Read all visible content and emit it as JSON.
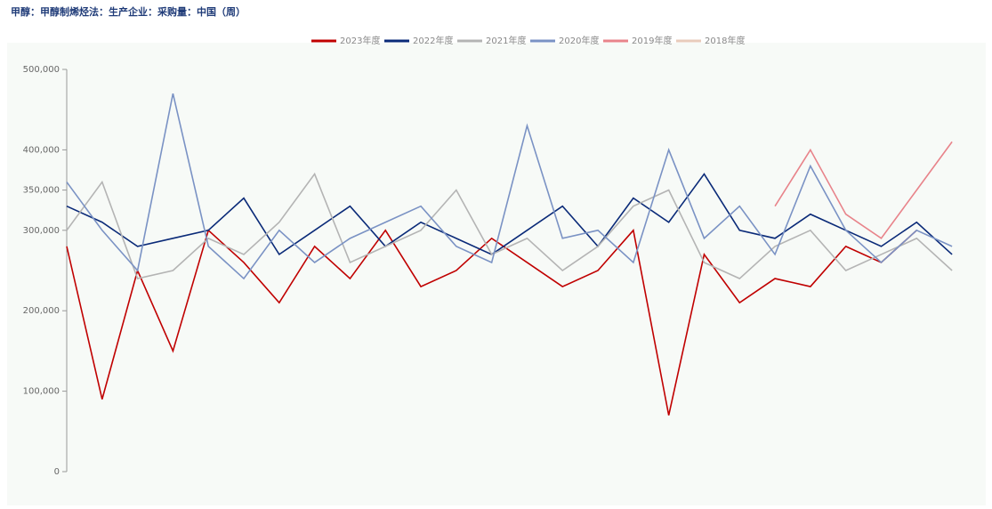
{
  "chart_data": {
    "type": "line",
    "title": "甲醇：甲醇制烯烃法：生产企业：采购量：中国（周）",
    "x": [
      1,
      3,
      5,
      7,
      9,
      11,
      13,
      15,
      17,
      19,
      21,
      23,
      25,
      27,
      29,
      31,
      33,
      35,
      37,
      39,
      41,
      43,
      45,
      47,
      49,
      51
    ],
    "xlim": [
      1,
      52
    ],
    "ylim": [
      0,
      500000
    ],
    "yticks": [
      {
        "value": 0,
        "label": "0"
      },
      {
        "value": 100000,
        "label": "100,000"
      },
      {
        "value": 200000,
        "label": "200,000"
      },
      {
        "value": 300000,
        "label": "300,000"
      },
      {
        "value": 350000,
        "label": "350,000"
      },
      {
        "value": 400000,
        "label": "400,000"
      },
      {
        "value": 500000,
        "label": "500,000"
      }
    ],
    "legend": "top",
    "series": [
      {
        "name": "2023年度",
        "color": "#c00000",
        "values": [
          280000,
          90000,
          250000,
          150000,
          300000,
          260000,
          210000,
          280000,
          240000,
          300000,
          230000,
          250000,
          290000,
          260000,
          230000,
          250000,
          300000,
          70000,
          270000,
          210000,
          240000,
          230000,
          280000,
          260000,
          300000,
          null
        ]
      },
      {
        "name": "2022年度",
        "color": "#0a2a78",
        "values": [
          330000,
          310000,
          280000,
          290000,
          300000,
          340000,
          270000,
          300000,
          330000,
          280000,
          310000,
          290000,
          270000,
          300000,
          330000,
          280000,
          340000,
          310000,
          370000,
          300000,
          290000,
          320000,
          300000,
          280000,
          310000,
          270000
        ]
      },
      {
        "name": "2021年度",
        "color": "#b4b4b4",
        "values": [
          300000,
          360000,
          240000,
          250000,
          290000,
          270000,
          310000,
          370000,
          260000,
          280000,
          300000,
          350000,
          270000,
          290000,
          250000,
          280000,
          330000,
          350000,
          260000,
          240000,
          280000,
          300000,
          250000,
          270000,
          290000,
          250000
        ]
      },
      {
        "name": "2020年度",
        "color": "#7a92c4",
        "values": [
          360000,
          300000,
          250000,
          470000,
          280000,
          240000,
          300000,
          260000,
          290000,
          310000,
          330000,
          280000,
          260000,
          430000,
          290000,
          300000,
          260000,
          400000,
          290000,
          330000,
          270000,
          380000,
          300000,
          260000,
          300000,
          280000
        ]
      },
      {
        "name": "2019年度",
        "color": "#e8838a",
        "values": [
          null,
          null,
          null,
          null,
          null,
          null,
          null,
          null,
          null,
          null,
          null,
          null,
          null,
          null,
          null,
          null,
          null,
          null,
          null,
          null,
          330000,
          400000,
          320000,
          290000,
          350000,
          410000
        ]
      },
      {
        "name": "2018年度",
        "color": "#e8cbbb",
        "values": [
          null,
          null,
          null,
          null,
          null,
          null,
          null,
          null,
          null,
          null,
          null,
          null,
          null,
          null,
          null,
          null,
          null,
          null,
          null,
          null,
          null,
          null,
          null,
          null,
          null,
          null
        ]
      }
    ]
  }
}
